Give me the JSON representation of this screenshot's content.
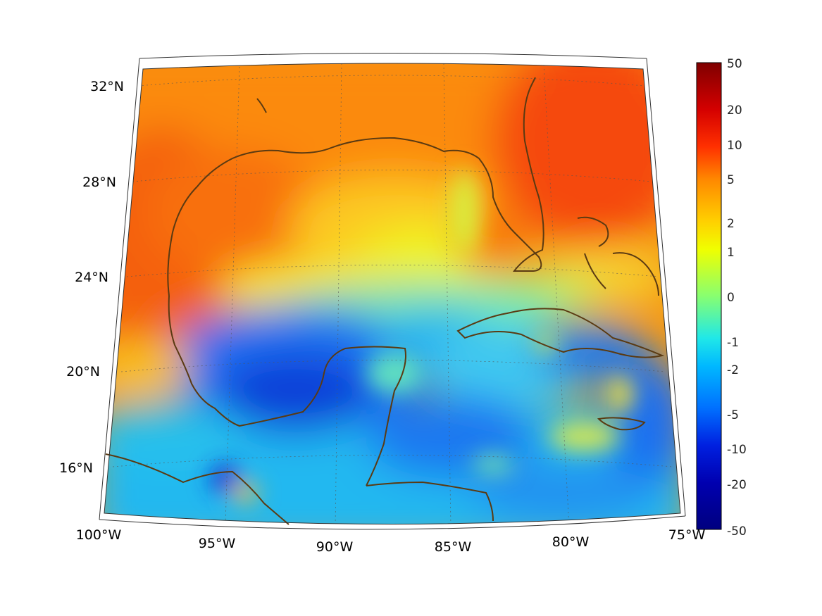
{
  "map": {
    "projection": "conic",
    "lon_range": [
      -100,
      -75
    ],
    "lat_range": [
      14,
      33
    ],
    "lon_tick_labels": [
      "100°W",
      "95°W",
      "90°W",
      "85°W",
      "80°W",
      "75°W"
    ],
    "lat_tick_labels": [
      "16°N",
      "20°N",
      "24°N",
      "28°N",
      "32°N"
    ],
    "coastline_color": "#5a3a12",
    "gridlines": "dotted"
  },
  "colorbar": {
    "tick_labels": [
      "50",
      "20",
      "10",
      "5",
      "2",
      "1",
      "0",
      "-1",
      "-2",
      "-5",
      "-10",
      "-20",
      "-50"
    ],
    "colors": [
      "#7f0000",
      "#d40000",
      "#ff3000",
      "#ff8800",
      "#ffd000",
      "#f0ff00",
      "#88ff70",
      "#20e8e8",
      "#00b8ff",
      "#0070ff",
      "#0020e0",
      "#0000b0",
      "#00007f"
    ],
    "scale": "symmetric-log",
    "range": [
      -50,
      50
    ]
  }
}
